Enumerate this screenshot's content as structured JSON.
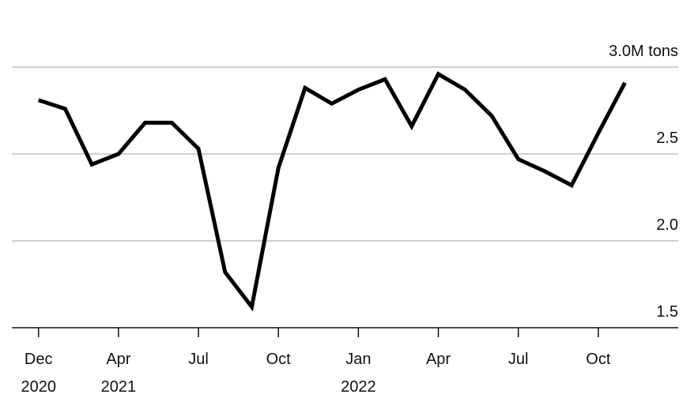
{
  "chart_data": {
    "type": "line",
    "x": [
      0,
      1,
      2,
      3,
      4,
      5,
      6,
      7,
      8,
      9,
      10,
      11,
      12,
      13,
      14,
      15,
      16,
      17,
      18,
      19,
      20,
      21,
      22
    ],
    "values": [
      2.81,
      2.76,
      2.44,
      2.5,
      2.68,
      2.68,
      2.53,
      1.82,
      1.62,
      2.42,
      2.88,
      2.79,
      2.87,
      2.93,
      2.66,
      2.96,
      2.87,
      2.72,
      2.47,
      2.4,
      2.32,
      2.62,
      2.91
    ],
    "color": "#000000",
    "xlim": [
      -1,
      24
    ],
    "xticks": [
      {
        "value": 0,
        "label": "Dec",
        "sublabel": "2020"
      },
      {
        "value": 3,
        "label": "Apr",
        "sublabel": "2021"
      },
      {
        "value": 6,
        "label": "Jul"
      },
      {
        "value": 9,
        "label": "Oct"
      },
      {
        "value": 12,
        "label": "Jan",
        "sublabel": "2022"
      },
      {
        "value": 15,
        "label": "Apr"
      },
      {
        "value": 18,
        "label": "Jul"
      },
      {
        "value": 21,
        "label": "Oct"
      }
    ],
    "ylim": [
      1.5,
      3.0
    ],
    "yticks": [
      1.5,
      {
        "value": 2,
        "label": "2.0"
      },
      2.5,
      {
        "value": 3,
        "label": "3.0M tons"
      }
    ],
    "grid": true
  }
}
